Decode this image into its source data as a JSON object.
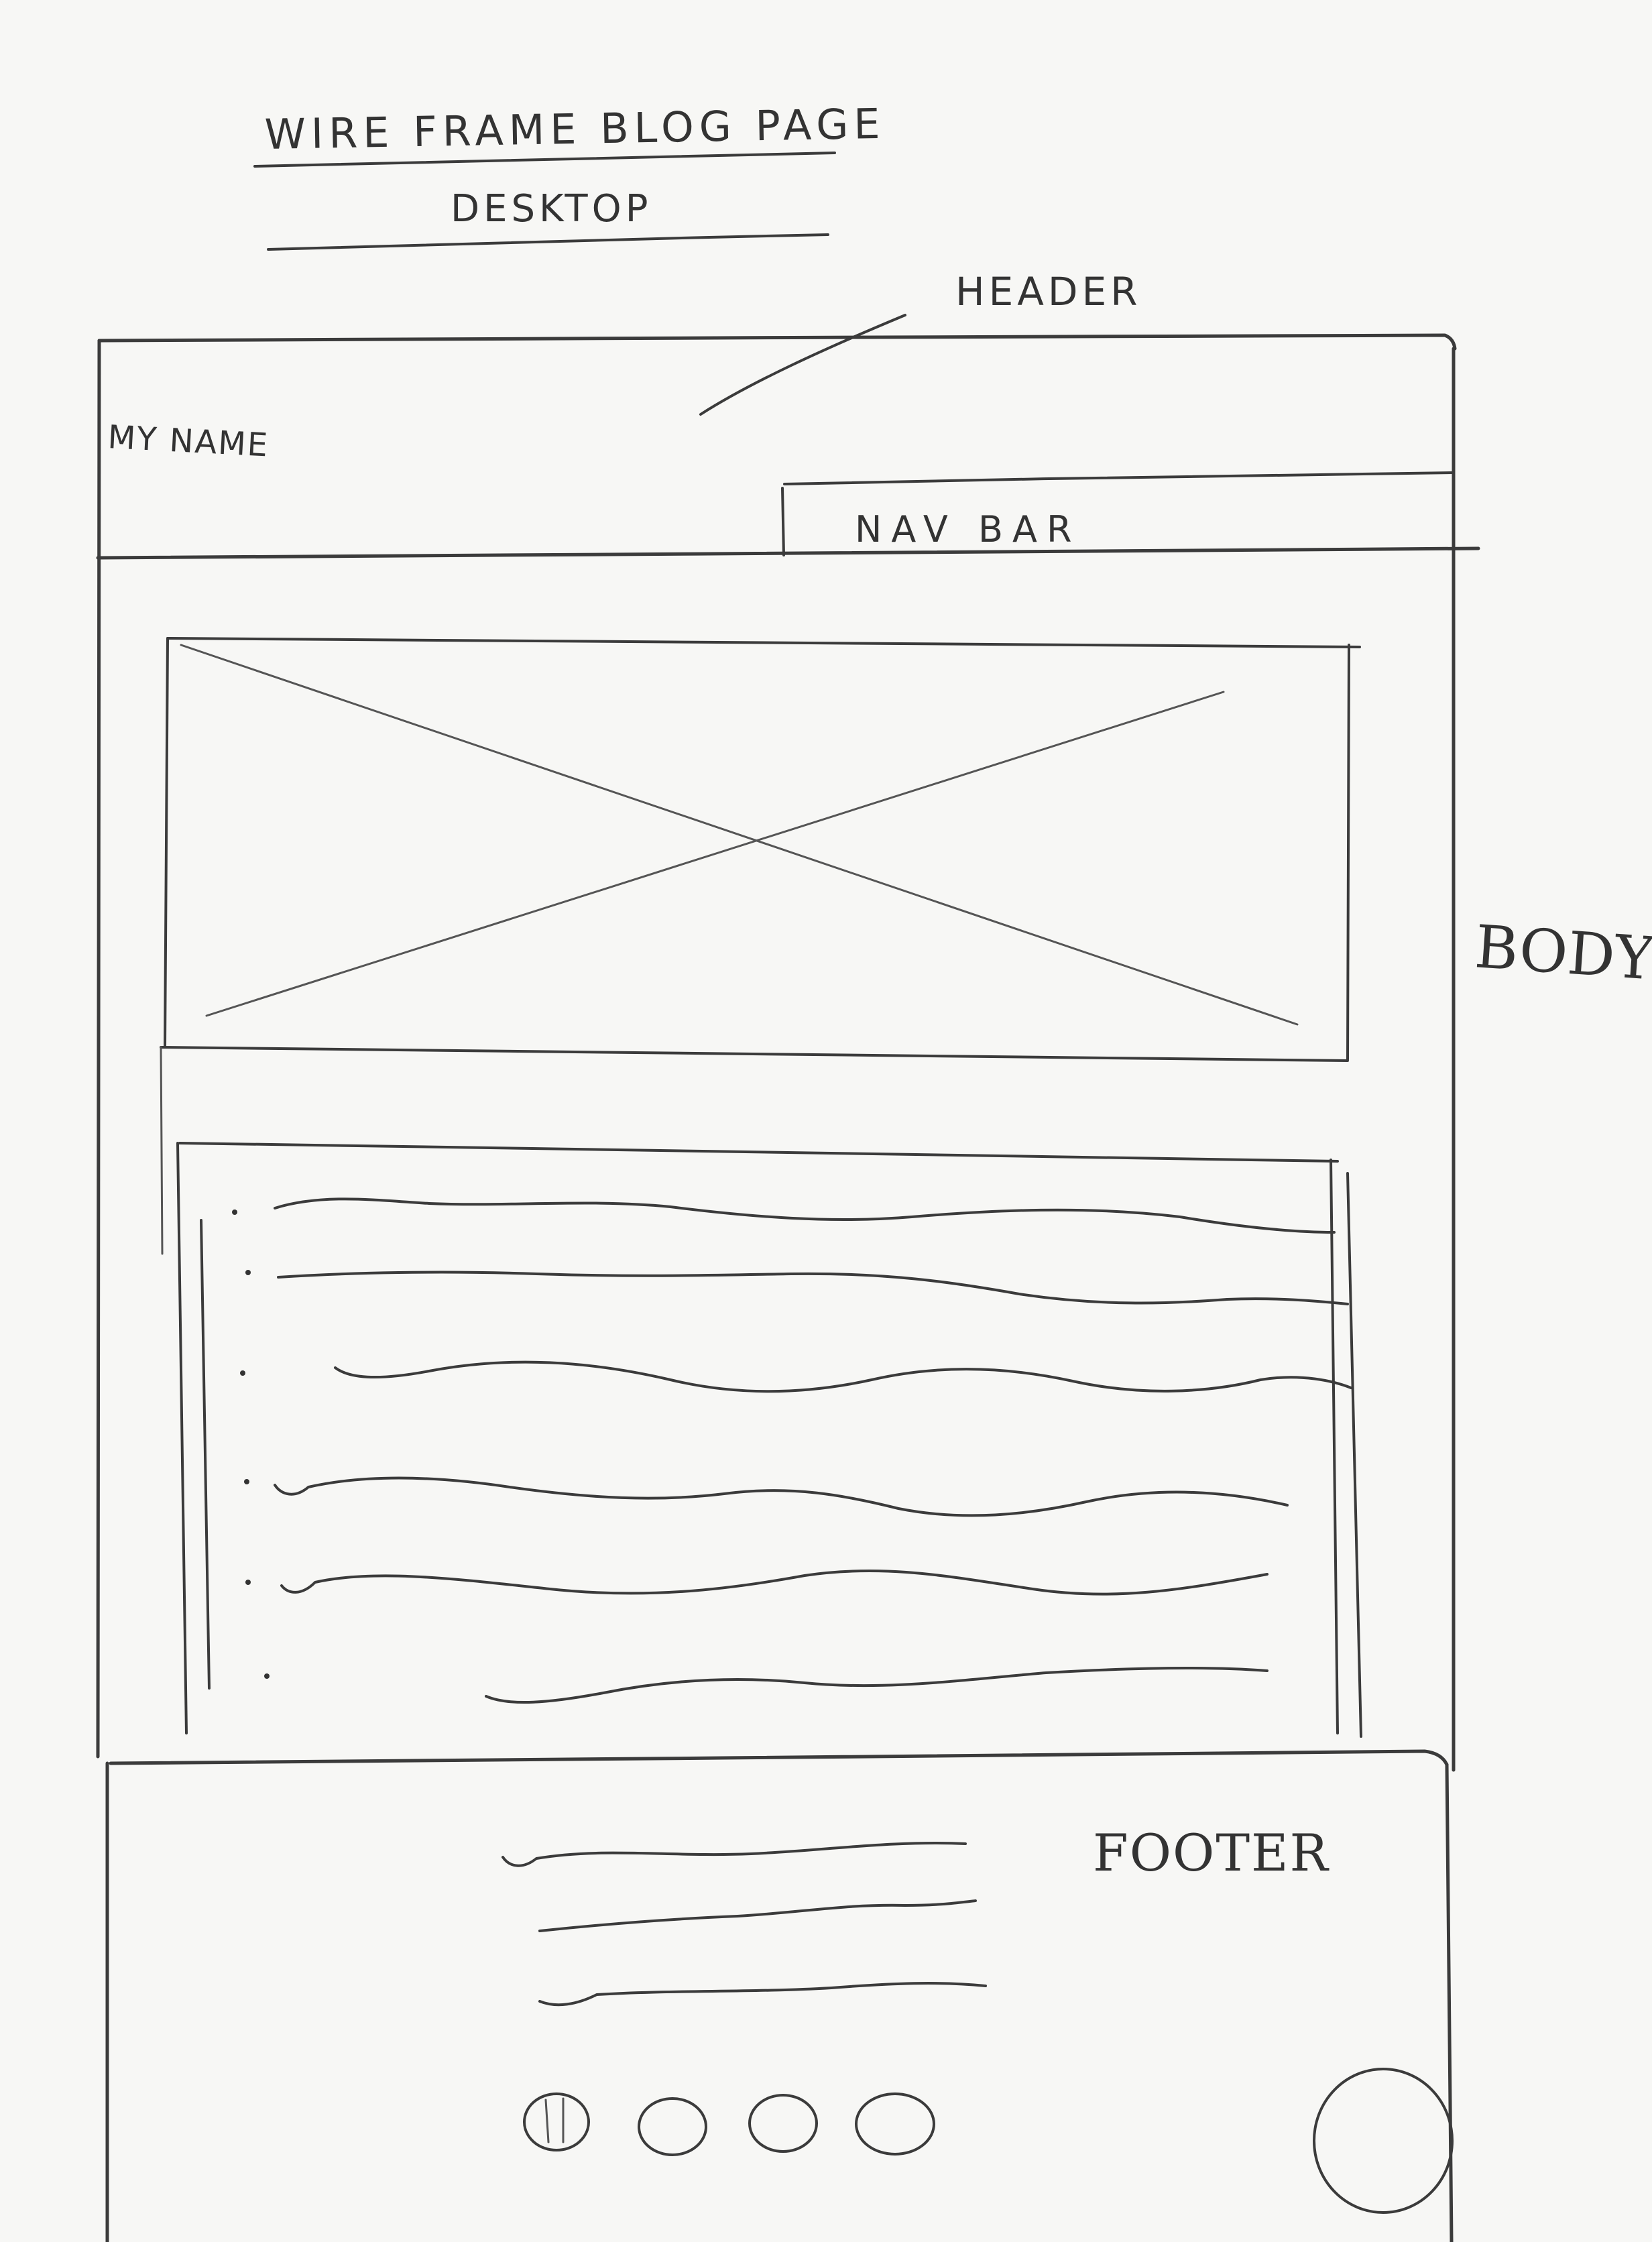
{
  "title": "WIRE FRAME BLOG PAGE",
  "subtitle": "DESKTOP",
  "annotations": {
    "header": "HEADER",
    "body": "BODY",
    "footer": "FOOTER"
  },
  "header": {
    "site_name": "MY NAME",
    "nav_label": "NAV BAR"
  },
  "body": {
    "hero_image": "image placeholder",
    "content_lines": 6
  },
  "footer": {
    "text_lines": 3,
    "social_circles": 4,
    "large_circle": 1
  },
  "colors": {
    "paper": "#f7f7f5",
    "ink": "#3b3b3b"
  }
}
